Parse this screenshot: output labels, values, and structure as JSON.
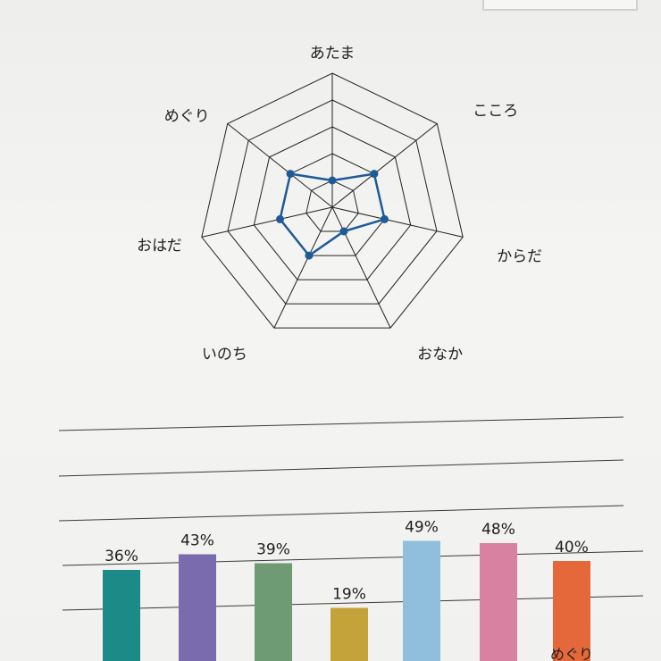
{
  "chart_data": [
    {
      "type": "radar",
      "axes": [
        "あたま",
        "こころ",
        "からだ",
        "おなか",
        "いのち",
        "おはだ",
        "めぐり"
      ],
      "values": [
        1,
        2,
        2,
        1,
        2,
        2,
        2
      ],
      "levels": 5,
      "color": "#1e5a96",
      "grid_color": "#222222"
    },
    {
      "type": "bar",
      "values": [
        36,
        43,
        39,
        19,
        49,
        48,
        40
      ],
      "labels": [
        "36%",
        "43%",
        "39%",
        "19%",
        "49%",
        "48%",
        "40%"
      ],
      "category_labels": [
        "",
        "",
        "",
        "",
        "",
        "",
        "めぐり"
      ],
      "colors": [
        "#1c8a86",
        "#7a6aae",
        "#6f9b74",
        "#c4a43a",
        "#8fbfdd",
        "#d981a1",
        "#e4683a"
      ]
    }
  ]
}
